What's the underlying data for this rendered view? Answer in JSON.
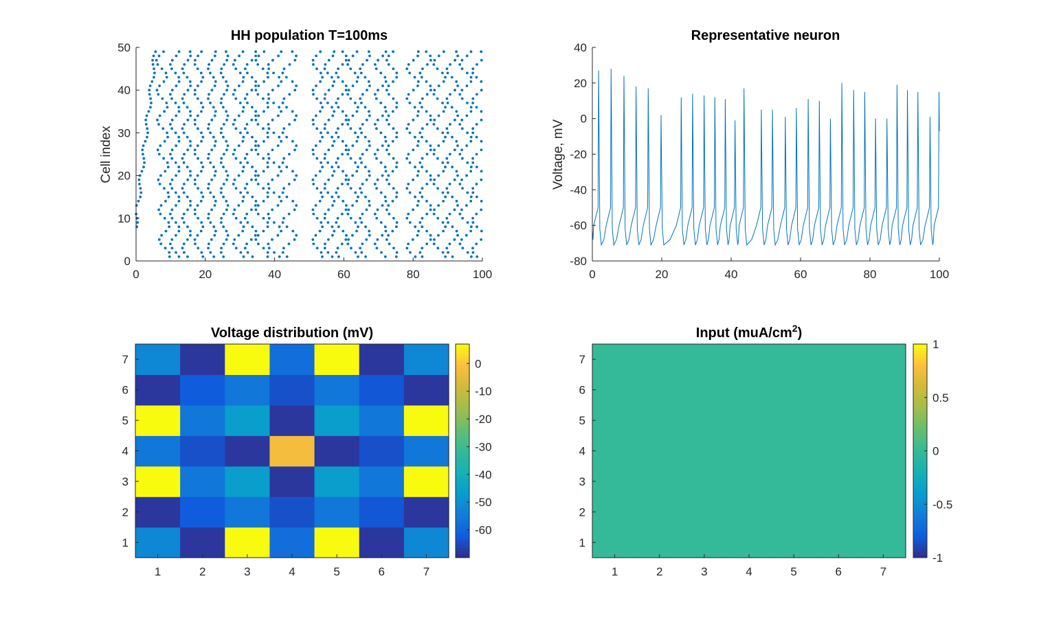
{
  "chart_data": [
    {
      "type": "scatter",
      "title": "HH population T=100ms",
      "xlabel": "",
      "ylabel": "Cell index",
      "xlim": [
        0,
        100
      ],
      "ylim": [
        0,
        50
      ],
      "xticks": [
        0,
        20,
        40,
        60,
        80,
        100
      ],
      "yticks": [
        0,
        10,
        20,
        30,
        40,
        50
      ],
      "marker_color": "#0072BD",
      "n_cells": 49,
      "spike_waves": [
        {
          "center": 2.2,
          "slope": 0.14,
          "amp": 0.5,
          "phase": 0.0
        },
        {
          "center": 7.8,
          "slope": -0.02,
          "amp": 1.5,
          "phase": 0.3
        },
        {
          "center": 11.2,
          "slope": 0.0,
          "amp": 1.3,
          "phase": 1.1
        },
        {
          "center": 14.6,
          "slope": 0.0,
          "amp": 1.2,
          "phase": 2.0
        },
        {
          "center": 18.1,
          "slope": 0.0,
          "amp": 1.2,
          "phase": 0.6
        },
        {
          "center": 21.9,
          "slope": 0.0,
          "amp": 1.1,
          "phase": 1.7
        },
        {
          "center": 25.5,
          "slope": 0.0,
          "amp": 1.0,
          "phase": 2.5
        },
        {
          "center": 29.6,
          "slope": 0.0,
          "amp": 1.5,
          "phase": 0.9
        },
        {
          "center": 33.1,
          "slope": 0.0,
          "amp": 1.6,
          "phase": 1.9
        },
        {
          "center": 36.4,
          "slope": 0.0,
          "amp": 1.8,
          "phase": 0.2
        },
        {
          "center": 40.0,
          "slope": 0.0,
          "amp": 1.9,
          "phase": 1.4
        },
        {
          "center": 44.3,
          "slope": 0.0,
          "amp": 2.0,
          "phase": 2.6
        },
        {
          "center": 52.4,
          "slope": 0.0,
          "amp": 1.4,
          "phase": 0.5
        },
        {
          "center": 55.8,
          "slope": 0.0,
          "amp": 1.4,
          "phase": 1.6
        },
        {
          "center": 59.3,
          "slope": 0.0,
          "amp": 1.5,
          "phase": 2.8
        },
        {
          "center": 62.6,
          "slope": 0.0,
          "amp": 1.5,
          "phase": 0.8
        },
        {
          "center": 66.1,
          "slope": 0.0,
          "amp": 1.4,
          "phase": 2.1
        },
        {
          "center": 70.6,
          "slope": 0.0,
          "amp": 1.6,
          "phase": 1.2
        },
        {
          "center": 73.9,
          "slope": 0.0,
          "amp": 1.5,
          "phase": 0.1
        },
        {
          "center": 79.9,
          "slope": 0.0,
          "amp": 1.7,
          "phase": 1.8
        },
        {
          "center": 83.6,
          "slope": 0.0,
          "amp": 1.6,
          "phase": 2.9
        },
        {
          "center": 87.6,
          "slope": 0.0,
          "amp": 1.7,
          "phase": 0.7
        },
        {
          "center": 91.3,
          "slope": 0.0,
          "amp": 1.6,
          "phase": 2.2
        },
        {
          "center": 95.2,
          "slope": 0.0,
          "amp": 1.7,
          "phase": 1.0
        },
        {
          "center": 98.7,
          "slope": 0.0,
          "amp": 1.6,
          "phase": 2.4
        }
      ]
    },
    {
      "type": "line",
      "title": "Representative neuron",
      "xlabel": "",
      "ylabel": "Voltage, mV",
      "xlim": [
        0,
        100
      ],
      "ylim": [
        -80,
        40
      ],
      "xticks": [
        0,
        20,
        40,
        60,
        80,
        100
      ],
      "yticks": [
        -80,
        -60,
        -40,
        -20,
        0,
        20,
        40
      ],
      "line_color": "#0072BD",
      "start_voltage": -63,
      "spikes": [
        {
          "t": 1.8,
          "peak": 27
        },
        {
          "t": 5.4,
          "peak": 28
        },
        {
          "t": 9.1,
          "peak": 24
        },
        {
          "t": 12.6,
          "peak": 18
        },
        {
          "t": 16.1,
          "peak": 17
        },
        {
          "t": 19.8,
          "peak": 2
        },
        {
          "t": 25.6,
          "peak": 12
        },
        {
          "t": 28.9,
          "peak": 14
        },
        {
          "t": 32.2,
          "peak": 13
        },
        {
          "t": 35.3,
          "peak": 12
        },
        {
          "t": 38.3,
          "peak": 11
        },
        {
          "t": 41.1,
          "peak": -1
        },
        {
          "t": 43.7,
          "peak": 17
        },
        {
          "t": 48.7,
          "peak": 5
        },
        {
          "t": 51.9,
          "peak": 5
        },
        {
          "t": 55.6,
          "peak": 1
        },
        {
          "t": 58.8,
          "peak": 6
        },
        {
          "t": 62.2,
          "peak": 11
        },
        {
          "t": 65.4,
          "peak": 10
        },
        {
          "t": 68.6,
          "peak": 0
        },
        {
          "t": 71.9,
          "peak": 20
        },
        {
          "t": 75.3,
          "peak": 16
        },
        {
          "t": 78.5,
          "peak": 15
        },
        {
          "t": 81.6,
          "peak": 0
        },
        {
          "t": 84.9,
          "peak": 0
        },
        {
          "t": 87.8,
          "peak": 19
        },
        {
          "t": 90.8,
          "peak": 16
        },
        {
          "t": 93.8,
          "peak": 15
        },
        {
          "t": 97.3,
          "peak": 1
        },
        {
          "t": 99.9,
          "peak": 15
        }
      ],
      "end_voltage": -7
    },
    {
      "type": "heatmap",
      "title": "Voltage distribution (mV)",
      "x": [
        1,
        2,
        3,
        4,
        5,
        6,
        7
      ],
      "y": [
        1,
        2,
        3,
        4,
        5,
        6,
        7
      ],
      "colormap": "parula",
      "clim": [
        -70,
        7
      ],
      "colorbar_ticks": [
        0,
        -10,
        -20,
        -30,
        -40,
        -50,
        -60
      ],
      "values_rows_y1_to_y7": [
        [
          -52,
          -68,
          7,
          -58,
          7,
          -68,
          -52
        ],
        [
          -68,
          -62,
          -56,
          -64,
          -56,
          -63,
          -68
        ],
        [
          7,
          -56,
          -46,
          -68,
          -46,
          -56,
          7
        ],
        [
          -56,
          -64,
          -68,
          -2,
          -68,
          -64,
          -56
        ],
        [
          7,
          -56,
          -46,
          -68,
          -46,
          -56,
          7
        ],
        [
          -68,
          -62,
          -56,
          -64,
          -56,
          -63,
          -68
        ],
        [
          -52,
          -68,
          7,
          -58,
          7,
          -68,
          -52
        ]
      ]
    },
    {
      "type": "heatmap",
      "title_main": "Input (muA/cm",
      "title_sup": "2",
      "title_end": ")",
      "x": [
        1,
        2,
        3,
        4,
        5,
        6,
        7
      ],
      "y": [
        1,
        2,
        3,
        4,
        5,
        6,
        7
      ],
      "colormap": "parula",
      "clim": [
        -1,
        1
      ],
      "colorbar_ticks": [
        1,
        0.5,
        0,
        -0.5,
        -1
      ],
      "colorbar_tick_labels": [
        "1",
        "0.5",
        "0",
        "-0.5",
        "-1"
      ],
      "values_rows_y1_to_y7": [
        [
          0,
          0,
          0,
          0,
          0,
          0,
          0
        ],
        [
          0,
          0,
          0,
          0,
          0,
          0,
          0
        ],
        [
          0,
          0,
          0,
          0,
          0,
          0,
          0
        ],
        [
          0,
          0,
          0,
          0,
          0,
          0,
          0
        ],
        [
          0,
          0,
          0,
          0,
          0,
          0,
          0
        ],
        [
          0,
          0,
          0,
          0,
          0,
          0,
          0
        ],
        [
          0,
          0,
          0,
          0,
          0,
          0,
          0
        ]
      ]
    }
  ]
}
